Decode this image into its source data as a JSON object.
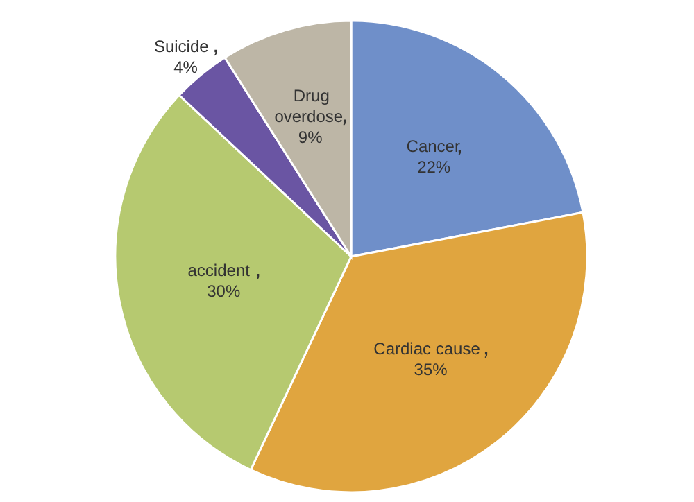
{
  "chart_data": {
    "type": "pie",
    "categories": [
      "Cancer",
      "Cardiac cause",
      "accident",
      "Suicide",
      "Drug overdose"
    ],
    "values": [
      22,
      35,
      30,
      4,
      9
    ],
    "value_labels": [
      "22%",
      "35%",
      "30%",
      "4%",
      "9%"
    ],
    "colors": [
      "#6f8fc9",
      "#e0a53f",
      "#b6c970",
      "#6a55a3",
      "#bdb6a6"
    ]
  }
}
